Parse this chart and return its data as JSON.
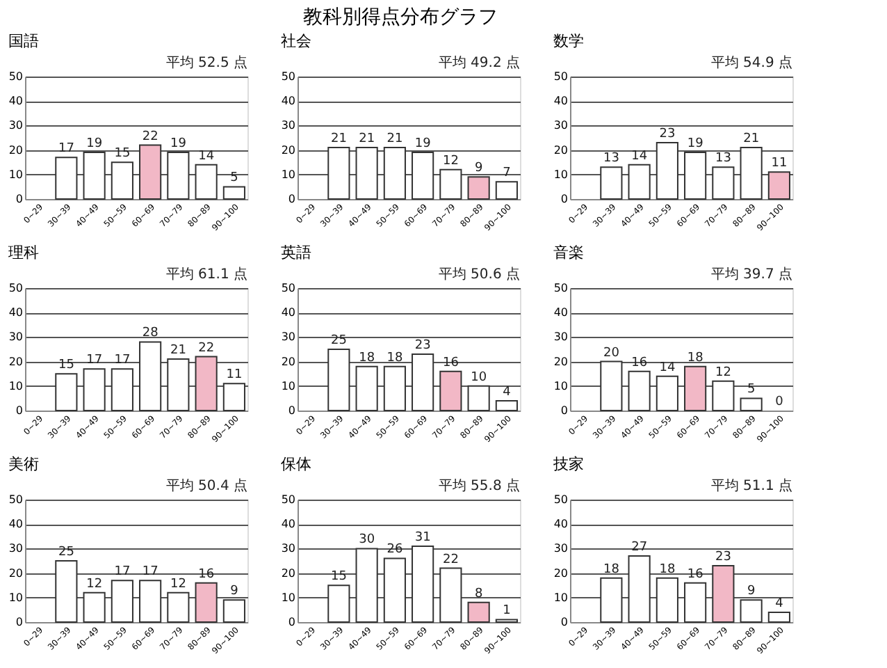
{
  "chart_data": [
    {
      "type": "bar",
      "title": "国語",
      "subtitle": "平均 52.5 点",
      "annotations": [
        "教科別得点分布グラフ"
      ],
      "categories": [
        "0~29",
        "30~39",
        "40~49",
        "50~59",
        "60~69",
        "70~79",
        "80~89",
        "90~100"
      ],
      "values": [
        0,
        17,
        19,
        15,
        22,
        19,
        14,
        5
      ],
      "value_labels": [
        null,
        "17",
        "19",
        "15",
        "22",
        "19",
        "14",
        "5"
      ],
      "colors": [
        "#ffffff",
        "#ffffff",
        "#ffffff",
        "#ffffff",
        "#f2b8c6",
        "#ffffff",
        "#ffffff",
        "#ffffff"
      ],
      "ylim": [
        0,
        50
      ],
      "yticks": [
        0,
        10,
        20,
        30,
        40,
        50
      ],
      "grid": "y"
    },
    {
      "type": "bar",
      "title": "社会",
      "subtitle": "平均 49.2 点",
      "categories": [
        "0~29",
        "30~39",
        "40~49",
        "50~59",
        "60~69",
        "70~79",
        "80~89",
        "90~100"
      ],
      "values": [
        0,
        21,
        21,
        21,
        19,
        12,
        9,
        7
      ],
      "value_labels": [
        null,
        "21",
        "21",
        "21",
        "19",
        "12",
        "9",
        "7"
      ],
      "colors": [
        "#ffffff",
        "#ffffff",
        "#ffffff",
        "#ffffff",
        "#ffffff",
        "#ffffff",
        "#f2b8c6",
        "#ffffff"
      ],
      "ylim": [
        0,
        50
      ],
      "yticks": [
        0,
        10,
        20,
        30,
        40,
        50
      ],
      "grid": "y"
    },
    {
      "type": "bar",
      "title": "数学",
      "subtitle": "平均 54.9 点",
      "categories": [
        "0~29",
        "30~39",
        "40~49",
        "50~59",
        "60~69",
        "70~79",
        "80~89",
        "90~100"
      ],
      "values": [
        0,
        13,
        14,
        23,
        19,
        13,
        21,
        11
      ],
      "value_labels": [
        null,
        "13",
        "14",
        "23",
        "19",
        "13",
        "21",
        "11"
      ],
      "colors": [
        "#ffffff",
        "#ffffff",
        "#ffffff",
        "#ffffff",
        "#ffffff",
        "#ffffff",
        "#ffffff",
        "#f2b8c6"
      ],
      "ylim": [
        0,
        50
      ],
      "yticks": [
        0,
        10,
        20,
        30,
        40,
        50
      ],
      "grid": "y"
    },
    {
      "type": "bar",
      "title": "理科",
      "subtitle": "平均 61.1 点",
      "categories": [
        "0~29",
        "30~39",
        "40~49",
        "50~59",
        "60~69",
        "70~79",
        "80~89",
        "90~100"
      ],
      "values": [
        0,
        15,
        17,
        17,
        28,
        21,
        22,
        11
      ],
      "value_labels": [
        null,
        "15",
        "17",
        "17",
        "28",
        "21",
        "22",
        "11"
      ],
      "colors": [
        "#ffffff",
        "#ffffff",
        "#ffffff",
        "#ffffff",
        "#ffffff",
        "#ffffff",
        "#f2b8c6",
        "#ffffff"
      ],
      "ylim": [
        0,
        50
      ],
      "yticks": [
        0,
        10,
        20,
        30,
        40,
        50
      ],
      "grid": "y"
    },
    {
      "type": "bar",
      "title": "英語",
      "subtitle": "平均 50.6 点",
      "categories": [
        "0~29",
        "30~39",
        "40~49",
        "50~59",
        "60~69",
        "70~79",
        "80~89",
        "90~100"
      ],
      "values": [
        0,
        25,
        18,
        18,
        23,
        16,
        10,
        4
      ],
      "value_labels": [
        null,
        "25",
        "18",
        "18",
        "23",
        "16",
        "10",
        "4"
      ],
      "colors": [
        "#ffffff",
        "#ffffff",
        "#ffffff",
        "#ffffff",
        "#ffffff",
        "#f2b8c6",
        "#ffffff",
        "#ffffff"
      ],
      "ylim": [
        0,
        50
      ],
      "yticks": [
        0,
        10,
        20,
        30,
        40,
        50
      ],
      "grid": "y"
    },
    {
      "type": "bar",
      "title": "音楽",
      "subtitle": "平均 39.7 点",
      "categories": [
        "0~29",
        "30~39",
        "40~49",
        "50~59",
        "60~69",
        "70~79",
        "80~89",
        "90~100"
      ],
      "values": [
        0,
        20,
        16,
        14,
        18,
        12,
        5,
        0
      ],
      "value_labels": [
        null,
        "20",
        "16",
        "14",
        "18",
        "12",
        "5",
        "0"
      ],
      "colors": [
        "#ffffff",
        "#ffffff",
        "#ffffff",
        "#ffffff",
        "#f2b8c6",
        "#ffffff",
        "#ffffff",
        "#ffffff"
      ],
      "ylim": [
        0,
        50
      ],
      "yticks": [
        0,
        10,
        20,
        30,
        40,
        50
      ],
      "grid": "y"
    },
    {
      "type": "bar",
      "title": "美術",
      "subtitle": "平均 50.4 点",
      "categories": [
        "0~29",
        "30~39",
        "40~49",
        "50~59",
        "60~69",
        "70~79",
        "80~89",
        "90~100"
      ],
      "values": [
        0,
        25,
        12,
        17,
        17,
        12,
        16,
        9
      ],
      "value_labels": [
        null,
        "25",
        "12",
        "17",
        "17",
        "12",
        "16",
        "9"
      ],
      "colors": [
        "#ffffff",
        "#ffffff",
        "#ffffff",
        "#ffffff",
        "#ffffff",
        "#ffffff",
        "#f2b8c6",
        "#ffffff"
      ],
      "ylim": [
        0,
        50
      ],
      "yticks": [
        0,
        10,
        20,
        30,
        40,
        50
      ],
      "grid": "y"
    },
    {
      "type": "bar",
      "title": "保体",
      "subtitle": "平均 55.8 点",
      "categories": [
        "0~29",
        "30~39",
        "40~49",
        "50~59",
        "60~69",
        "70~79",
        "80~89",
        "90~100"
      ],
      "values": [
        0,
        15,
        30,
        26,
        31,
        22,
        8,
        1
      ],
      "value_labels": [
        null,
        "15",
        "30",
        "26",
        "31",
        "22",
        "8",
        "1"
      ],
      "colors": [
        "#ffffff",
        "#ffffff",
        "#ffffff",
        "#ffffff",
        "#ffffff",
        "#ffffff",
        "#f2b8c6",
        "#ffffff"
      ],
      "ylim": [
        0,
        50
      ],
      "yticks": [
        0,
        10,
        20,
        30,
        40,
        50
      ],
      "grid": "y"
    },
    {
      "type": "bar",
      "title": "技家",
      "subtitle": "平均 51.1 点",
      "categories": [
        "0~29",
        "30~39",
        "40~49",
        "50~59",
        "60~69",
        "70~79",
        "80~89",
        "90~100"
      ],
      "values": [
        0,
        18,
        27,
        18,
        16,
        23,
        9,
        4
      ],
      "value_labels": [
        null,
        "18",
        "27",
        "18",
        "16",
        "23",
        "9",
        "4"
      ],
      "colors": [
        "#ffffff",
        "#ffffff",
        "#ffffff",
        "#ffffff",
        "#ffffff",
        "#f2b8c6",
        "#ffffff",
        "#ffffff"
      ],
      "ylim": [
        0,
        50
      ],
      "yticks": [
        0,
        10,
        20,
        30,
        40,
        50
      ],
      "grid": "y"
    }
  ]
}
